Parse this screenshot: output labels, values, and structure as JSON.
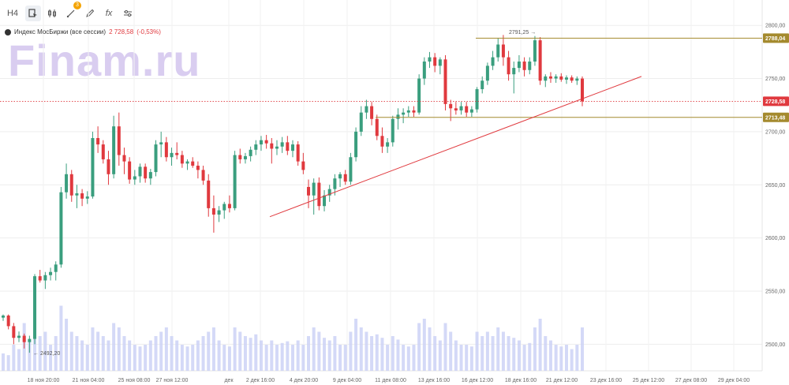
{
  "toolbar": {
    "timeframe_label": "H4",
    "drawings_badge": "3",
    "fx_label": "fx"
  },
  "legend": {
    "instrument": "Индекс МосБиржи (все сессии)",
    "price": "2 728,58",
    "change": "(-0,53%)"
  },
  "watermark": "Finam.ru",
  "colors": {
    "up": "#3a9e7e",
    "down": "#e0393e",
    "volume": "#c9d0f5",
    "levels": "#a48a2e",
    "trend": "#e0393e",
    "last_price_label": "#e0393e"
  },
  "chart_data": {
    "type": "candlestick",
    "ylim": [
      2475,
      2815
    ],
    "y_ticks": [
      2500,
      2550,
      2600,
      2650,
      2700,
      2750,
      2800
    ],
    "y_tick_labels": [
      "2500,00",
      "2550,00",
      "2600,00",
      "2650,00",
      "2700,00",
      "2750,00",
      "2800,00"
    ],
    "x_tick_labels": [
      "18 ноя 20:00",
      "21 ноя 04:00",
      "25 ноя 08:00",
      "27 ноя 12:00",
      "дек",
      "2 дек 16:00",
      "4 дек 20:00",
      "9 дек 04:00",
      "11 дек 08:00",
      "13 дек 16:00",
      "16 дек 12:00",
      "18 дек 16:00",
      "21 дек 12:00",
      "23 дек 16:00",
      "25 дек 12:00",
      "27 дек 08:00",
      "29 дек 04:00"
    ],
    "horizontal_levels": [
      {
        "value": 2788.04,
        "label": "2788,04"
      },
      {
        "value": 2713.48,
        "label": "2713,48"
      }
    ],
    "last_price": {
      "value": 2728.58,
      "label": "2728,58"
    },
    "annotations": [
      {
        "text": "2791,25",
        "value": 2791.25
      },
      {
        "text": "2492,20",
        "value": 2492.2
      }
    ],
    "trendline": {
      "from": 2620,
      "to": 2752
    },
    "candles": [
      {
        "o": 2525,
        "h": 2528,
        "l": 2522,
        "c": 2527,
        "v": 0.2
      },
      {
        "o": 2527,
        "h": 2528,
        "l": 2514,
        "c": 2517,
        "v": 0.18
      },
      {
        "o": 2517,
        "h": 2520,
        "l": 2500,
        "c": 2506,
        "v": 0.3
      },
      {
        "o": 2506,
        "h": 2512,
        "l": 2502,
        "c": 2508,
        "v": 0.25
      },
      {
        "o": 2508,
        "h": 2510,
        "l": 2496,
        "c": 2502,
        "v": 0.55
      },
      {
        "o": 2502,
        "h": 2508,
        "l": 2492,
        "c": 2505,
        "v": 0.35
      },
      {
        "o": 2505,
        "h": 2566,
        "l": 2500,
        "c": 2564,
        "v": 0.85
      },
      {
        "o": 2564,
        "h": 2570,
        "l": 2558,
        "c": 2560,
        "v": 0.4
      },
      {
        "o": 2560,
        "h": 2568,
        "l": 2552,
        "c": 2565,
        "v": 0.45
      },
      {
        "o": 2565,
        "h": 2572,
        "l": 2560,
        "c": 2568,
        "v": 0.3
      },
      {
        "o": 2568,
        "h": 2578,
        "l": 2560,
        "c": 2575,
        "v": 0.4
      },
      {
        "o": 2575,
        "h": 2648,
        "l": 2572,
        "c": 2643,
        "v": 0.75
      },
      {
        "o": 2643,
        "h": 2670,
        "l": 2637,
        "c": 2660,
        "v": 0.6
      },
      {
        "o": 2660,
        "h": 2664,
        "l": 2634,
        "c": 2640,
        "v": 0.45
      },
      {
        "o": 2640,
        "h": 2650,
        "l": 2628,
        "c": 2642,
        "v": 0.4
      },
      {
        "o": 2642,
        "h": 2646,
        "l": 2630,
        "c": 2637,
        "v": 0.35
      },
      {
        "o": 2637,
        "h": 2644,
        "l": 2632,
        "c": 2639,
        "v": 0.3
      },
      {
        "o": 2639,
        "h": 2700,
        "l": 2637,
        "c": 2694,
        "v": 0.5
      },
      {
        "o": 2694,
        "h": 2705,
        "l": 2680,
        "c": 2688,
        "v": 0.45
      },
      {
        "o": 2688,
        "h": 2692,
        "l": 2670,
        "c": 2674,
        "v": 0.4
      },
      {
        "o": 2674,
        "h": 2682,
        "l": 2650,
        "c": 2660,
        "v": 0.35
      },
      {
        "o": 2660,
        "h": 2715,
        "l": 2656,
        "c": 2705,
        "v": 0.55
      },
      {
        "o": 2705,
        "h": 2718,
        "l": 2668,
        "c": 2678,
        "v": 0.5
      },
      {
        "o": 2678,
        "h": 2685,
        "l": 2660,
        "c": 2672,
        "v": 0.4
      },
      {
        "o": 2672,
        "h": 2676,
        "l": 2651,
        "c": 2655,
        "v": 0.35
      },
      {
        "o": 2655,
        "h": 2664,
        "l": 2650,
        "c": 2658,
        "v": 0.3
      },
      {
        "o": 2658,
        "h": 2670,
        "l": 2652,
        "c": 2667,
        "v": 0.28
      },
      {
        "o": 2667,
        "h": 2670,
        "l": 2652,
        "c": 2656,
        "v": 0.3
      },
      {
        "o": 2656,
        "h": 2665,
        "l": 2650,
        "c": 2662,
        "v": 0.35
      },
      {
        "o": 2662,
        "h": 2692,
        "l": 2658,
        "c": 2688,
        "v": 0.4
      },
      {
        "o": 2688,
        "h": 2700,
        "l": 2676,
        "c": 2690,
        "v": 0.45
      },
      {
        "o": 2690,
        "h": 2695,
        "l": 2672,
        "c": 2676,
        "v": 0.5
      },
      {
        "o": 2676,
        "h": 2685,
        "l": 2668,
        "c": 2680,
        "v": 0.4
      },
      {
        "o": 2680,
        "h": 2690,
        "l": 2674,
        "c": 2678,
        "v": 0.35
      },
      {
        "o": 2678,
        "h": 2682,
        "l": 2666,
        "c": 2670,
        "v": 0.3
      },
      {
        "o": 2670,
        "h": 2674,
        "l": 2664,
        "c": 2672,
        "v": 0.28
      },
      {
        "o": 2672,
        "h": 2676,
        "l": 2666,
        "c": 2668,
        "v": 0.3
      },
      {
        "o": 2668,
        "h": 2672,
        "l": 2656,
        "c": 2664,
        "v": 0.35
      },
      {
        "o": 2664,
        "h": 2668,
        "l": 2650,
        "c": 2654,
        "v": 0.4
      },
      {
        "o": 2654,
        "h": 2660,
        "l": 2620,
        "c": 2628,
        "v": 0.45
      },
      {
        "o": 2628,
        "h": 2640,
        "l": 2605,
        "c": 2622,
        "v": 0.5
      },
      {
        "o": 2622,
        "h": 2630,
        "l": 2615,
        "c": 2626,
        "v": 0.35
      },
      {
        "o": 2626,
        "h": 2634,
        "l": 2618,
        "c": 2632,
        "v": 0.3
      },
      {
        "o": 2632,
        "h": 2640,
        "l": 2624,
        "c": 2628,
        "v": 0.28
      },
      {
        "o": 2628,
        "h": 2682,
        "l": 2626,
        "c": 2678,
        "v": 0.5
      },
      {
        "o": 2678,
        "h": 2684,
        "l": 2670,
        "c": 2674,
        "v": 0.45
      },
      {
        "o": 2674,
        "h": 2680,
        "l": 2670,
        "c": 2677,
        "v": 0.4
      },
      {
        "o": 2677,
        "h": 2686,
        "l": 2672,
        "c": 2683,
        "v": 0.38
      },
      {
        "o": 2683,
        "h": 2692,
        "l": 2678,
        "c": 2688,
        "v": 0.42
      },
      {
        "o": 2688,
        "h": 2696,
        "l": 2682,
        "c": 2692,
        "v": 0.35
      },
      {
        "o": 2692,
        "h": 2697,
        "l": 2684,
        "c": 2689,
        "v": 0.3
      },
      {
        "o": 2689,
        "h": 2694,
        "l": 2670,
        "c": 2684,
        "v": 0.35
      },
      {
        "o": 2684,
        "h": 2692,
        "l": 2678,
        "c": 2686,
        "v": 0.3
      },
      {
        "o": 2686,
        "h": 2695,
        "l": 2680,
        "c": 2690,
        "v": 0.32
      },
      {
        "o": 2690,
        "h": 2696,
        "l": 2678,
        "c": 2682,
        "v": 0.34
      },
      {
        "o": 2682,
        "h": 2692,
        "l": 2676,
        "c": 2688,
        "v": 0.3
      },
      {
        "o": 2688,
        "h": 2691,
        "l": 2668,
        "c": 2672,
        "v": 0.35
      },
      {
        "o": 2672,
        "h": 2680,
        "l": 2660,
        "c": 2664,
        "v": 0.3
      },
      {
        "o": 2648,
        "h": 2655,
        "l": 2628,
        "c": 2640,
        "v": 0.4
      },
      {
        "o": 2640,
        "h": 2656,
        "l": 2622,
        "c": 2652,
        "v": 0.5
      },
      {
        "o": 2652,
        "h": 2657,
        "l": 2626,
        "c": 2630,
        "v": 0.45
      },
      {
        "o": 2630,
        "h": 2645,
        "l": 2625,
        "c": 2640,
        "v": 0.38
      },
      {
        "o": 2640,
        "h": 2650,
        "l": 2634,
        "c": 2646,
        "v": 0.35
      },
      {
        "o": 2646,
        "h": 2660,
        "l": 2640,
        "c": 2656,
        "v": 0.4
      },
      {
        "o": 2656,
        "h": 2662,
        "l": 2648,
        "c": 2660,
        "v": 0.3
      },
      {
        "o": 2660,
        "h": 2664,
        "l": 2650,
        "c": 2653,
        "v": 0.3
      },
      {
        "o": 2653,
        "h": 2680,
        "l": 2650,
        "c": 2676,
        "v": 0.45
      },
      {
        "o": 2676,
        "h": 2704,
        "l": 2672,
        "c": 2700,
        "v": 0.6
      },
      {
        "o": 2700,
        "h": 2724,
        "l": 2696,
        "c": 2718,
        "v": 0.5
      },
      {
        "o": 2718,
        "h": 2730,
        "l": 2712,
        "c": 2724,
        "v": 0.45
      },
      {
        "o": 2724,
        "h": 2728,
        "l": 2706,
        "c": 2712,
        "v": 0.4
      },
      {
        "o": 2712,
        "h": 2716,
        "l": 2692,
        "c": 2696,
        "v": 0.42
      },
      {
        "o": 2696,
        "h": 2704,
        "l": 2680,
        "c": 2686,
        "v": 0.38
      },
      {
        "o": 2686,
        "h": 2694,
        "l": 2680,
        "c": 2690,
        "v": 0.3
      },
      {
        "o": 2690,
        "h": 2715,
        "l": 2686,
        "c": 2712,
        "v": 0.4
      },
      {
        "o": 2712,
        "h": 2722,
        "l": 2702,
        "c": 2716,
        "v": 0.36
      },
      {
        "o": 2716,
        "h": 2722,
        "l": 2708,
        "c": 2718,
        "v": 0.3
      },
      {
        "o": 2718,
        "h": 2724,
        "l": 2714,
        "c": 2720,
        "v": 0.28
      },
      {
        "o": 2720,
        "h": 2724,
        "l": 2714,
        "c": 2718,
        "v": 0.3
      },
      {
        "o": 2718,
        "h": 2754,
        "l": 2716,
        "c": 2750,
        "v": 0.55
      },
      {
        "o": 2750,
        "h": 2770,
        "l": 2744,
        "c": 2766,
        "v": 0.6
      },
      {
        "o": 2766,
        "h": 2775,
        "l": 2760,
        "c": 2770,
        "v": 0.5
      },
      {
        "o": 2770,
        "h": 2774,
        "l": 2756,
        "c": 2762,
        "v": 0.4
      },
      {
        "o": 2762,
        "h": 2770,
        "l": 2754,
        "c": 2768,
        "v": 0.35
      },
      {
        "o": 2768,
        "h": 2772,
        "l": 2720,
        "c": 2726,
        "v": 0.55
      },
      {
        "o": 2726,
        "h": 2730,
        "l": 2710,
        "c": 2722,
        "v": 0.45
      },
      {
        "o": 2722,
        "h": 2728,
        "l": 2716,
        "c": 2720,
        "v": 0.35
      },
      {
        "o": 2720,
        "h": 2728,
        "l": 2716,
        "c": 2724,
        "v": 0.3
      },
      {
        "o": 2724,
        "h": 2728,
        "l": 2714,
        "c": 2718,
        "v": 0.3
      },
      {
        "o": 2718,
        "h": 2724,
        "l": 2714,
        "c": 2721,
        "v": 0.28
      },
      {
        "o": 2721,
        "h": 2742,
        "l": 2718,
        "c": 2740,
        "v": 0.45
      },
      {
        "o": 2740,
        "h": 2752,
        "l": 2736,
        "c": 2748,
        "v": 0.4
      },
      {
        "o": 2748,
        "h": 2765,
        "l": 2744,
        "c": 2762,
        "v": 0.45
      },
      {
        "o": 2762,
        "h": 2776,
        "l": 2758,
        "c": 2770,
        "v": 0.4
      },
      {
        "o": 2770,
        "h": 2788,
        "l": 2766,
        "c": 2782,
        "v": 0.5
      },
      {
        "o": 2782,
        "h": 2791,
        "l": 2762,
        "c": 2770,
        "v": 0.45
      },
      {
        "o": 2770,
        "h": 2776,
        "l": 2748,
        "c": 2754,
        "v": 0.4
      },
      {
        "o": 2754,
        "h": 2766,
        "l": 2736,
        "c": 2760,
        "v": 0.38
      },
      {
        "o": 2760,
        "h": 2772,
        "l": 2756,
        "c": 2766,
        "v": 0.35
      },
      {
        "o": 2766,
        "h": 2770,
        "l": 2752,
        "c": 2758,
        "v": 0.3
      },
      {
        "o": 2758,
        "h": 2770,
        "l": 2754,
        "c": 2766,
        "v": 0.32
      },
      {
        "o": 2766,
        "h": 2790,
        "l": 2762,
        "c": 2786,
        "v": 0.5
      },
      {
        "o": 2786,
        "h": 2789,
        "l": 2744,
        "c": 2748,
        "v": 0.6
      },
      {
        "o": 2748,
        "h": 2754,
        "l": 2742,
        "c": 2752,
        "v": 0.4
      },
      {
        "o": 2752,
        "h": 2756,
        "l": 2746,
        "c": 2750,
        "v": 0.35
      },
      {
        "o": 2750,
        "h": 2754,
        "l": 2746,
        "c": 2752,
        "v": 0.3
      },
      {
        "o": 2752,
        "h": 2755,
        "l": 2747,
        "c": 2749,
        "v": 0.28
      },
      {
        "o": 2749,
        "h": 2753,
        "l": 2745,
        "c": 2751,
        "v": 0.3
      },
      {
        "o": 2751,
        "h": 2753,
        "l": 2746,
        "c": 2748,
        "v": 0.25
      },
      {
        "o": 2748,
        "h": 2752,
        "l": 2744,
        "c": 2750,
        "v": 0.3
      },
      {
        "o": 2750,
        "h": 2752,
        "l": 2724,
        "c": 2728.58,
        "v": 0.5
      }
    ]
  }
}
